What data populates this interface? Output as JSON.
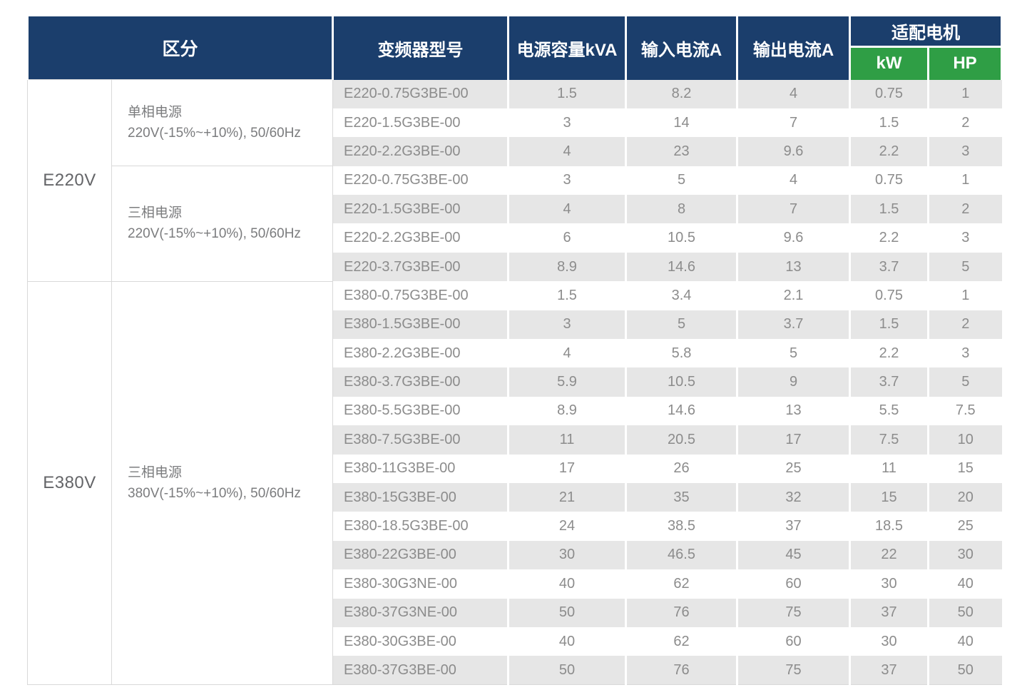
{
  "chart_data": {
    "type": "table",
    "header": {
      "category": "区分",
      "model": "变频器型号",
      "capacity_kva": "电源容量kVA",
      "input_current": "输入电流A",
      "output_current": "输出电流A",
      "motor": "适配电机",
      "motor_kw": "kW",
      "motor_hp": "HP"
    },
    "groups": [
      {
        "voltage": "E220V",
        "sections": [
          {
            "power": "单相电源",
            "spec": "220V(-15%~+10%), 50/60Hz",
            "rows": [
              {
                "model": "E220-0.75G3BE-00",
                "kva": "1.5",
                "in_a": "8.2",
                "out_a": "4",
                "kw": "0.75",
                "hp": "1"
              },
              {
                "model": "E220-1.5G3BE-00",
                "kva": "3",
                "in_a": "14",
                "out_a": "7",
                "kw": "1.5",
                "hp": "2"
              },
              {
                "model": "E220-2.2G3BE-00",
                "kva": "4",
                "in_a": "23",
                "out_a": "9.6",
                "kw": "2.2",
                "hp": "3"
              }
            ]
          },
          {
            "power": "三相电源",
            "spec": "220V(-15%~+10%), 50/60Hz",
            "rows": [
              {
                "model": "E220-0.75G3BE-00",
                "kva": "3",
                "in_a": "5",
                "out_a": "4",
                "kw": "0.75",
                "hp": "1"
              },
              {
                "model": "E220-1.5G3BE-00",
                "kva": "4",
                "in_a": "8",
                "out_a": "7",
                "kw": "1.5",
                "hp": "2"
              },
              {
                "model": "E220-2.2G3BE-00",
                "kva": "6",
                "in_a": "10.5",
                "out_a": "9.6",
                "kw": "2.2",
                "hp": "3"
              },
              {
                "model": "E220-3.7G3BE-00",
                "kva": "8.9",
                "in_a": "14.6",
                "out_a": "13",
                "kw": "3.7",
                "hp": "5"
              }
            ]
          }
        ]
      },
      {
        "voltage": "E380V",
        "sections": [
          {
            "power": "三相电源",
            "spec": "380V(-15%~+10%), 50/60Hz",
            "rows": [
              {
                "model": "E380-0.75G3BE-00",
                "kva": "1.5",
                "in_a": "3.4",
                "out_a": "2.1",
                "kw": "0.75",
                "hp": "1"
              },
              {
                "model": "E380-1.5G3BE-00",
                "kva": "3",
                "in_a": "5",
                "out_a": "3.7",
                "kw": "1.5",
                "hp": "2"
              },
              {
                "model": "E380-2.2G3BE-00",
                "kva": "4",
                "in_a": "5.8",
                "out_a": "5",
                "kw": "2.2",
                "hp": "3"
              },
              {
                "model": "E380-3.7G3BE-00",
                "kva": "5.9",
                "in_a": "10.5",
                "out_a": "9",
                "kw": "3.7",
                "hp": "5"
              },
              {
                "model": "E380-5.5G3BE-00",
                "kva": "8.9",
                "in_a": "14.6",
                "out_a": "13",
                "kw": "5.5",
                "hp": "7.5"
              },
              {
                "model": "E380-7.5G3BE-00",
                "kva": "11",
                "in_a": "20.5",
                "out_a": "17",
                "kw": "7.5",
                "hp": "10"
              },
              {
                "model": "E380-11G3BE-00",
                "kva": "17",
                "in_a": "26",
                "out_a": "25",
                "kw": "11",
                "hp": "15"
              },
              {
                "model": "E380-15G3BE-00",
                "kva": "21",
                "in_a": "35",
                "out_a": "32",
                "kw": "15",
                "hp": "20"
              },
              {
                "model": "E380-18.5G3BE-00",
                "kva": "24",
                "in_a": "38.5",
                "out_a": "37",
                "kw": "18.5",
                "hp": "25"
              },
              {
                "model": "E380-22G3BE-00",
                "kva": "30",
                "in_a": "46.5",
                "out_a": "45",
                "kw": "22",
                "hp": "30"
              },
              {
                "model": "E380-30G3NE-00",
                "kva": "40",
                "in_a": "62",
                "out_a": "60",
                "kw": "30",
                "hp": "40"
              },
              {
                "model": "E380-37G3NE-00",
                "kva": "50",
                "in_a": "76",
                "out_a": "75",
                "kw": "37",
                "hp": "50"
              },
              {
                "model": "E380-30G3BE-00",
                "kva": "40",
                "in_a": "62",
                "out_a": "60",
                "kw": "30",
                "hp": "40"
              },
              {
                "model": "E380-37G3BE-00",
                "kva": "50",
                "in_a": "76",
                "out_a": "75",
                "kw": "37",
                "hp": "50"
              }
            ]
          }
        ]
      }
    ]
  },
  "colors": {
    "header_navy": "#1b3e6c",
    "header_green": "#2f9e45",
    "row_stripe_gray": "#e6e6e6",
    "border_gray": "#d9d9d9",
    "body_text_gray": "#8c8c8c"
  }
}
